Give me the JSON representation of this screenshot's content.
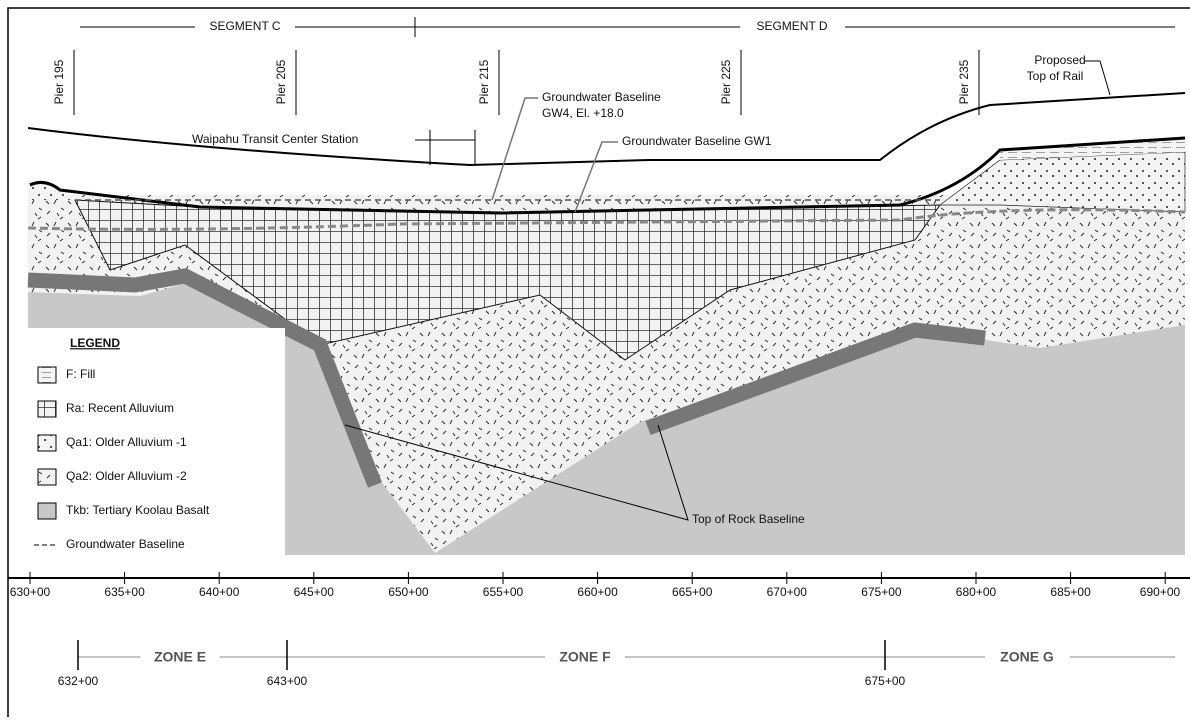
{
  "segments": [
    "SEGMENT C",
    "SEGMENT D"
  ],
  "piers": [
    "Pier 195",
    "Pier 205",
    "Pier 215",
    "Pier 225",
    "Pier 235"
  ],
  "annotations": {
    "proposed_top_of_rail": [
      "Proposed",
      "Top of Rail"
    ],
    "gw4": [
      "Groundwater Baseline",
      "GW4, El. +18.0"
    ],
    "station": "Waipahu Transit Center Station",
    "gw1": "Groundwater Baseline GW1",
    "top_of_rock": "Top of Rock Baseline"
  },
  "legend": {
    "title": "LEGEND",
    "items": [
      "F: Fill",
      "Ra: Recent Alluvium",
      "Qa1: Older Alluvium -1",
      "Qa2: Older Alluvium -2",
      "Tkb: Tertiary Koolau Basalt",
      "Groundwater Baseline"
    ]
  },
  "stations": [
    "630+00",
    "635+00",
    "640+00",
    "645+00",
    "650+00",
    "655+00",
    "660+00",
    "665+00",
    "670+00",
    "675+00",
    "680+00",
    "685+00",
    "690+00"
  ],
  "zones": {
    "labels": [
      "ZONE E",
      "ZONE F",
      "ZONE G"
    ],
    "boundaries": [
      "632+00",
      "643+00",
      "675+00"
    ]
  }
}
